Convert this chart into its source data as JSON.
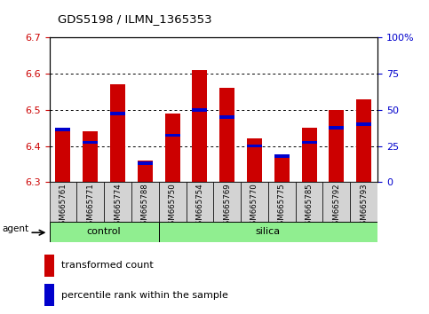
{
  "title": "GDS5198 / ILMN_1365353",
  "samples": [
    "GSM665761",
    "GSM665771",
    "GSM665774",
    "GSM665788",
    "GSM665750",
    "GSM665754",
    "GSM665769",
    "GSM665770",
    "GSM665775",
    "GSM665785",
    "GSM665792",
    "GSM665793"
  ],
  "transformed_count": [
    6.44,
    6.44,
    6.57,
    6.36,
    6.49,
    6.61,
    6.56,
    6.42,
    6.37,
    6.45,
    6.5,
    6.53
  ],
  "percentile_rank": [
    6.445,
    6.41,
    6.49,
    6.352,
    6.43,
    6.5,
    6.48,
    6.4,
    6.372,
    6.41,
    6.45,
    6.46
  ],
  "bar_bottom": 6.3,
  "ylim": [
    6.3,
    6.7
  ],
  "y2lim": [
    0,
    100
  ],
  "y_ticks": [
    6.3,
    6.4,
    6.5,
    6.6,
    6.7
  ],
  "y2_ticks": [
    0,
    25,
    50,
    75,
    100
  ],
  "y2_tick_labels": [
    "0",
    "25",
    "50",
    "75",
    "100%"
  ],
  "bar_color": "#cc0000",
  "percentile_color": "#0000cc",
  "grid_color": "#000000",
  "group_color": "#90ee90",
  "tick_label_color_left": "#cc0000",
  "tick_label_color_right": "#0000cc",
  "legend_items": [
    "transformed count",
    "percentile rank within the sample"
  ],
  "agent_label": "agent",
  "group_labels": [
    "control",
    "silica"
  ],
  "n_control": 4,
  "n_silica": 8,
  "sample_bg_color": "#d3d3d3"
}
